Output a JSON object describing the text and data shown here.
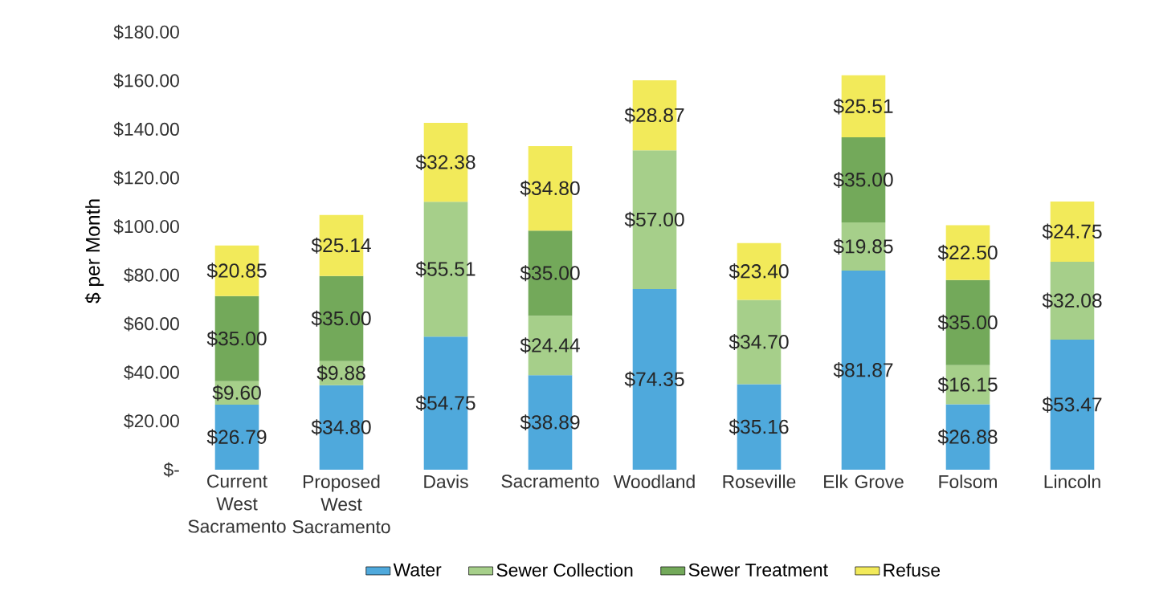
{
  "chart_data": {
    "type": "bar",
    "stacked": true,
    "ylabel": "$ per Month",
    "categories": [
      "Current West Sacramento",
      "Proposed West Sacramento",
      "Davis",
      "Sacramento",
      "Woodland",
      "Roseville",
      "Elk Grove",
      "Folsom",
      "Lincoln"
    ],
    "series": [
      {
        "name": "Water",
        "color": "#4fa9dc",
        "values": [
          26.79,
          34.8,
          54.75,
          38.89,
          74.35,
          35.16,
          81.87,
          26.88,
          53.47
        ],
        "value_labels": [
          "$26.79",
          "$34.80",
          "$54.75",
          "$38.89",
          "$74.35",
          "$35.16",
          "$81.87",
          "$26.88",
          "$53.47"
        ]
      },
      {
        "name": "Sewer Collection",
        "color": "#a6cf8a",
        "values": [
          9.6,
          9.88,
          55.51,
          24.44,
          57.0,
          34.7,
          19.85,
          16.15,
          32.08
        ],
        "value_labels": [
          "$9.60",
          "$9.88",
          "$55.51",
          "$24.44",
          "$57.00",
          "$34.70",
          "$19.85",
          "$16.15",
          "$32.08"
        ]
      },
      {
        "name": "Sewer Treatment",
        "color": "#73a95a",
        "values": [
          35.0,
          35.0,
          null,
          35.0,
          null,
          null,
          35.0,
          35.0,
          null
        ],
        "value_labels": [
          "$35.00",
          "$35.00",
          null,
          "$35.00",
          null,
          null,
          "$35.00",
          "$35.00",
          null
        ]
      },
      {
        "name": "Refuse",
        "color": "#f2ea5a",
        "values": [
          20.85,
          25.14,
          32.38,
          34.8,
          28.87,
          23.4,
          25.51,
          22.5,
          24.75
        ],
        "value_labels": [
          "$20.85",
          "$25.14",
          "$32.38",
          "$34.80",
          "$28.87",
          "$23.40",
          "$25.51",
          "$22.50",
          "$24.75"
        ]
      }
    ],
    "ylim": [
      0,
      180
    ],
    "yticks": [
      {
        "value": 0,
        "label": "$-"
      },
      {
        "value": 20,
        "label": "$20.00"
      },
      {
        "value": 40,
        "label": "$40.00"
      },
      {
        "value": 60,
        "label": "$60.00"
      },
      {
        "value": 80,
        "label": "$80.00"
      },
      {
        "value": 100,
        "label": "$100.00"
      },
      {
        "value": 120,
        "label": "$120.00"
      },
      {
        "value": 140,
        "label": "$140.00"
      },
      {
        "value": 160,
        "label": "$160.00"
      },
      {
        "value": 180,
        "label": "$180.00"
      }
    ],
    "grid": false,
    "legend": "bottom"
  }
}
